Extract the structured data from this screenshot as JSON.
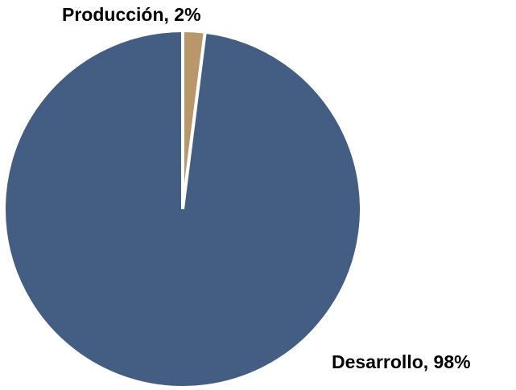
{
  "chart_data": {
    "type": "pie",
    "title": "",
    "series": [
      {
        "values": [
          2,
          98
        ]
      }
    ],
    "slices": [
      {
        "label": "Producción",
        "value": 2,
        "color": "#B8976A",
        "data_label": "Producción, 2%"
      },
      {
        "label": "Desarrollo",
        "value": 98,
        "color": "#445E83",
        "data_label": "Desarrollo, 98%"
      }
    ],
    "legend": "none",
    "start_angle": "12 o'clock",
    "direction": "clockwise"
  }
}
